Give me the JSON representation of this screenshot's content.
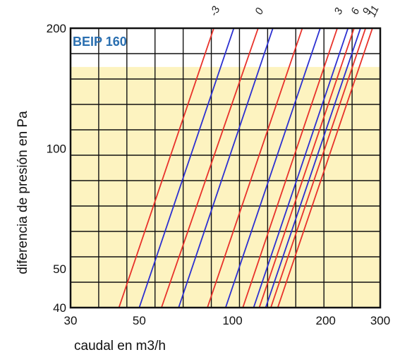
{
  "chart_data": {
    "type": "line",
    "model_label": "BEIP 160",
    "xlabel": "caudal  en m3/h",
    "ylabel": "diferencia de presión en Pa",
    "xscale": "log",
    "yscale": "log",
    "xlim": [
      30,
      300
    ],
    "ylim": [
      40,
      200
    ],
    "x_ticks": [
      30,
      50,
      100,
      200,
      300
    ],
    "y_ticks": [
      40,
      50,
      100,
      200
    ],
    "grid": true,
    "colors": {
      "red": "#e8312a",
      "blue": "#2b2fd1",
      "shade": "#fdf3c0",
      "grid": "#111111",
      "frame": "#111111"
    },
    "shaded_region": {
      "y_from": 40,
      "y_to": 160
    },
    "curve_labels": [
      "-3",
      "0",
      "3",
      "6",
      "9",
      "11"
    ],
    "series": [
      {
        "label": "-3",
        "color": "red",
        "points": [
          [
            43,
            40
          ],
          [
            87,
            200
          ]
        ]
      },
      {
        "label": "",
        "color": "blue",
        "points": [
          [
            50,
            40
          ],
          [
            101,
            200
          ]
        ]
      },
      {
        "label": "0",
        "color": "red",
        "points": [
          [
            59,
            40
          ],
          [
            121,
            200
          ]
        ]
      },
      {
        "label": "",
        "color": "blue",
        "points": [
          [
            67,
            40
          ],
          [
            135,
            200
          ]
        ]
      },
      {
        "label": "",
        "color": "red",
        "points": [
          [
            83,
            40
          ],
          [
            168,
            200
          ]
        ]
      },
      {
        "label": "",
        "color": "blue",
        "points": [
          [
            95,
            40
          ],
          [
            192,
            200
          ]
        ]
      },
      {
        "label": "3",
        "color": "red",
        "points": [
          [
            108,
            40
          ],
          [
            218,
            200
          ]
        ]
      },
      {
        "label": "",
        "color": "blue",
        "points": [
          [
            117,
            40
          ],
          [
            236,
            200
          ]
        ]
      },
      {
        "label": "6",
        "color": "red",
        "points": [
          [
            122,
            40
          ],
          [
            247,
            200
          ]
        ]
      },
      {
        "label": "",
        "color": "blue",
        "points": [
          [
            128,
            40
          ],
          [
            259,
            200
          ]
        ]
      },
      {
        "label": "9",
        "color": "red",
        "points": [
          [
            133,
            40
          ],
          [
            269,
            200
          ]
        ]
      },
      {
        "label": "11",
        "color": "red",
        "points": [
          [
            140,
            40
          ],
          [
            283,
            200
          ]
        ]
      }
    ]
  }
}
